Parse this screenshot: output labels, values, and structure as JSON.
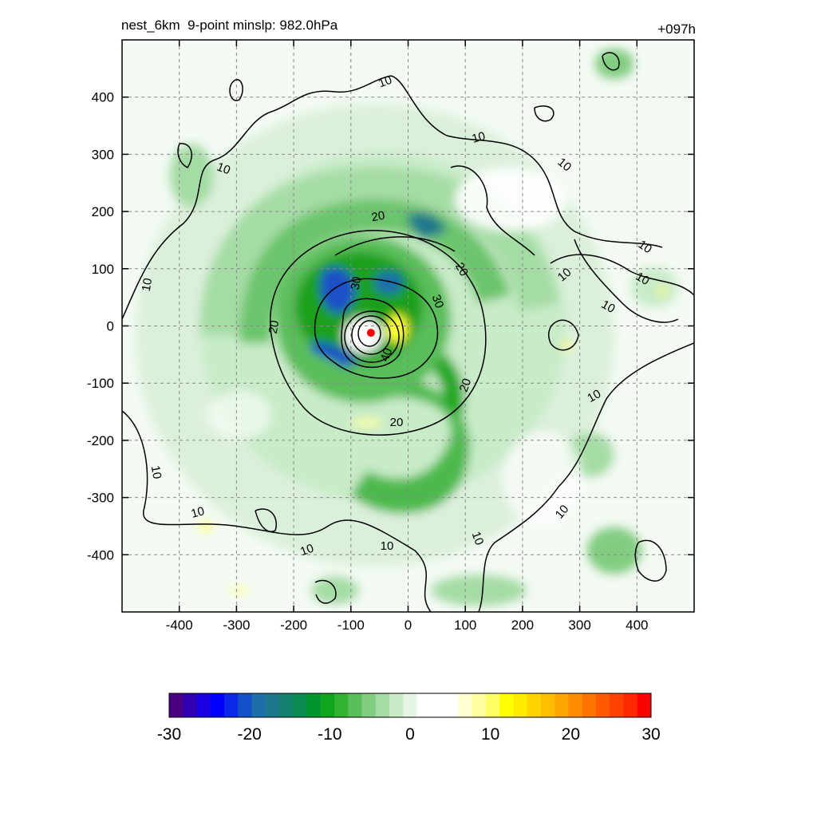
{
  "header": {
    "title_left": "nest_6km  9-point minslp: 982.0hPa",
    "title_right": "+097h"
  },
  "chart_data": {
    "type": "heatmap",
    "title": "nest_6km  9-point minslp: 982.0hPa",
    "lead_time": "+097h",
    "xlim": [
      -500,
      500
    ],
    "ylim": [
      -500,
      500
    ],
    "x_ticks": [
      -400,
      -300,
      -200,
      -100,
      0,
      100,
      200,
      300,
      400
    ],
    "y_ticks": [
      400,
      300,
      200,
      100,
      0,
      -100,
      -200,
      -300,
      -400
    ],
    "grid": true,
    "center_marker": {
      "x": -65,
      "y": -12,
      "color": "#ff0000"
    },
    "shaded_field": {
      "colorbar_range": [
        -30,
        30
      ],
      "colorbar_ticks": [
        -30,
        -20,
        -10,
        0,
        10,
        20,
        30
      ],
      "colormap": [
        "#4b0082",
        "#3000b0",
        "#1a00e0",
        "#0000ff",
        "#0a28e6",
        "#1450c8",
        "#1e6eaa",
        "#1e788c",
        "#14826e",
        "#0a8c50",
        "#00962d",
        "#0fa51e",
        "#32b432",
        "#5abe5a",
        "#82cd82",
        "#a5dca5",
        "#c8ebc8",
        "#e6f5e6",
        "#ffffff",
        "#ffffff",
        "#ffffff",
        "#ffffd2",
        "#ffffa0",
        "#ffff64",
        "#ffff00",
        "#ffeb00",
        "#ffd200",
        "#ffbe00",
        "#ffa500",
        "#ff8c00",
        "#ff7300",
        "#ff5a00",
        "#ff4100",
        "#ff2800",
        "#ff0000"
      ]
    },
    "contour_field": {
      "levels": [
        10,
        20,
        30,
        40
      ],
      "labels_shown": [
        "10",
        "10",
        "10",
        "10",
        "10",
        "10",
        "10",
        "10",
        "10",
        "10",
        "10",
        "10",
        "10",
        "10",
        "10",
        "10",
        "20",
        "20",
        "20",
        "20",
        "20",
        "30",
        "30",
        "40"
      ]
    }
  }
}
